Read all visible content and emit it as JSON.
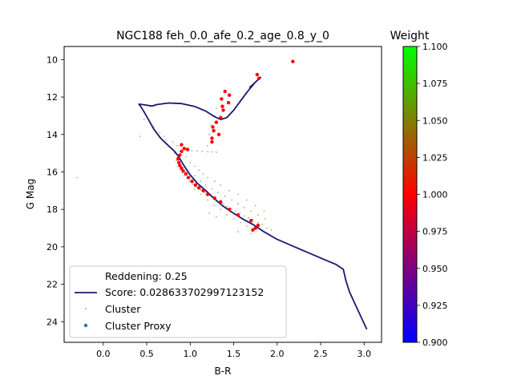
{
  "chart_data": {
    "type": "scatter",
    "title": "NGC188 feh_0.0_afe_0.2_age_0.8_y_0",
    "xlabel": "B-R",
    "ylabel": "G Mag",
    "xlim": [
      -0.45,
      3.2
    ],
    "ylim": [
      25.1,
      9.3
    ],
    "y_inverted": true,
    "x_ticks": [
      "0.0",
      "0.5",
      "1.0",
      "1.5",
      "2.0",
      "2.5",
      "3.0"
    ],
    "y_ticks": [
      "10",
      "12",
      "14",
      "16",
      "18",
      "20",
      "22",
      "24"
    ],
    "legend_position": "lower-left",
    "legend": {
      "reddening_label": "Reddening: 0.25",
      "score_label": "Score: 0.028633702997123152",
      "cluster_label": "Cluster",
      "proxy_label": "Cluster Proxy"
    },
    "colorbar": {
      "title": "Weight",
      "min": 0.9,
      "max": 1.1,
      "ticks": [
        "0.900",
        "0.925",
        "0.950",
        "0.975",
        "1.000",
        "1.025",
        "1.050",
        "1.075",
        "1.100"
      ],
      "colors": [
        "#0000ff",
        "#ff0000",
        "#00ff00"
      ]
    },
    "isochrone": {
      "color": "#191970",
      "points": [
        [
          3.03,
          24.4
        ],
        [
          2.98,
          23.9
        ],
        [
          2.93,
          23.4
        ],
        [
          2.88,
          22.9
        ],
        [
          2.83,
          22.4
        ],
        [
          2.79,
          21.8
        ],
        [
          2.76,
          21.2
        ],
        [
          2.68,
          20.95
        ],
        [
          2.55,
          20.7
        ],
        [
          2.4,
          20.4
        ],
        [
          2.2,
          20.0
        ],
        [
          2.0,
          19.6
        ],
        [
          1.85,
          19.2
        ],
        [
          1.72,
          18.8
        ],
        [
          1.6,
          18.5
        ],
        [
          1.48,
          18.15
        ],
        [
          1.37,
          17.8
        ],
        [
          1.27,
          17.4
        ],
        [
          1.18,
          17.0
        ],
        [
          1.08,
          16.6
        ],
        [
          0.99,
          16.1
        ],
        [
          0.92,
          15.6
        ],
        [
          0.87,
          15.2
        ],
        [
          0.82,
          14.9
        ],
        [
          0.75,
          14.6
        ],
        [
          0.66,
          14.2
        ],
        [
          0.58,
          13.7
        ],
        [
          0.52,
          13.2
        ],
        [
          0.47,
          12.8
        ],
        [
          0.43,
          12.5
        ],
        [
          0.41,
          12.38
        ],
        [
          0.48,
          12.42
        ],
        [
          0.56,
          12.48
        ],
        [
          0.62,
          12.4
        ],
        [
          0.75,
          12.32
        ],
        [
          0.9,
          12.35
        ],
        [
          1.05,
          12.5
        ],
        [
          1.18,
          12.75
        ],
        [
          1.28,
          13.05
        ],
        [
          1.35,
          13.2
        ],
        [
          1.42,
          13.1
        ],
        [
          1.5,
          12.7
        ],
        [
          1.58,
          12.2
        ],
        [
          1.66,
          11.7
        ],
        [
          1.74,
          11.25
        ],
        [
          1.81,
          10.95
        ],
        [
          1.75,
          11.2
        ],
        [
          1.68,
          11.5
        ]
      ]
    },
    "cluster_proxy": {
      "color": "#ff0000",
      "points": [
        [
          2.18,
          10.1
        ],
        [
          1.77,
          10.8
        ],
        [
          1.79,
          11.0
        ],
        [
          1.4,
          11.7
        ],
        [
          1.45,
          11.9
        ],
        [
          1.36,
          12.1
        ],
        [
          1.44,
          12.3
        ],
        [
          1.37,
          12.5
        ],
        [
          1.38,
          12.7
        ],
        [
          1.35,
          13.1
        ],
        [
          1.3,
          13.35
        ],
        [
          1.26,
          13.6
        ],
        [
          1.27,
          13.8
        ],
        [
          1.33,
          14.0
        ],
        [
          1.25,
          14.2
        ],
        [
          1.25,
          14.4
        ],
        [
          0.9,
          14.55
        ],
        [
          0.93,
          14.75
        ],
        [
          0.97,
          14.8
        ],
        [
          0.9,
          14.9
        ],
        [
          0.88,
          15.1
        ],
        [
          0.86,
          15.3
        ],
        [
          0.87,
          15.5
        ],
        [
          0.88,
          15.65
        ],
        [
          0.9,
          15.8
        ],
        [
          0.92,
          15.95
        ],
        [
          0.95,
          16.1
        ],
        [
          0.98,
          16.3
        ],
        [
          1.02,
          16.5
        ],
        [
          1.06,
          16.7
        ],
        [
          1.1,
          16.85
        ],
        [
          1.15,
          17.0
        ],
        [
          1.2,
          17.2
        ],
        [
          1.28,
          17.4
        ],
        [
          1.35,
          17.6
        ],
        [
          1.45,
          18.0
        ],
        [
          1.55,
          18.3
        ],
        [
          1.7,
          18.6
        ],
        [
          1.78,
          18.85
        ],
        [
          1.75,
          19.0
        ],
        [
          1.72,
          19.1
        ]
      ]
    },
    "cluster": {
      "color": "#8a9a4e",
      "points": [
        [
          -0.3,
          16.3
        ],
        [
          0.42,
          14.1
        ],
        [
          0.47,
          13.2
        ],
        [
          0.58,
          13.6
        ],
        [
          0.65,
          13.9
        ],
        [
          0.7,
          14.1
        ],
        [
          0.72,
          14.3
        ],
        [
          0.8,
          14.4
        ],
        [
          0.85,
          14.6
        ],
        [
          0.95,
          14.8
        ],
        [
          1.02,
          14.85
        ],
        [
          1.08,
          14.88
        ],
        [
          1.14,
          14.9
        ],
        [
          1.2,
          14.92
        ],
        [
          1.25,
          14.93
        ],
        [
          1.3,
          14.95
        ],
        [
          1.2,
          14.6
        ],
        [
          1.22,
          14.0
        ],
        [
          1.24,
          13.5
        ],
        [
          1.28,
          13.0
        ],
        [
          1.3,
          12.6
        ],
        [
          0.82,
          15.0
        ],
        [
          0.84,
          15.4
        ],
        [
          0.86,
          15.7
        ],
        [
          0.89,
          15.9
        ],
        [
          0.91,
          16.05
        ],
        [
          0.93,
          16.2
        ],
        [
          0.96,
          16.35
        ],
        [
          0.99,
          16.5
        ],
        [
          1.03,
          16.65
        ],
        [
          1.07,
          16.8
        ],
        [
          1.12,
          16.95
        ],
        [
          1.17,
          17.1
        ],
        [
          1.22,
          17.25
        ],
        [
          1.26,
          17.35
        ],
        [
          1.3,
          17.5
        ],
        [
          1.34,
          17.55
        ],
        [
          1.38,
          17.7
        ],
        [
          1.42,
          17.85
        ],
        [
          1.47,
          17.95
        ],
        [
          1.52,
          18.1
        ],
        [
          1.57,
          18.2
        ],
        [
          1.62,
          18.35
        ],
        [
          1.67,
          18.45
        ],
        [
          1.72,
          18.55
        ],
        [
          1.78,
          18.7
        ],
        [
          1.83,
          18.8
        ],
        [
          1.88,
          19.0
        ],
        [
          1.93,
          19.1
        ],
        [
          0.98,
          16.0
        ],
        [
          1.05,
          16.2
        ],
        [
          1.12,
          16.5
        ],
        [
          1.18,
          16.7
        ],
        [
          1.25,
          16.9
        ],
        [
          1.32,
          17.1
        ],
        [
          1.4,
          17.3
        ],
        [
          1.48,
          17.5
        ],
        [
          1.55,
          17.7
        ],
        [
          1.62,
          17.9
        ],
        [
          1.7,
          18.1
        ],
        [
          1.78,
          18.3
        ],
        [
          1.86,
          18.5
        ],
        [
          1.05,
          16.9
        ],
        [
          1.12,
          17.2
        ],
        [
          1.2,
          17.5
        ],
        [
          1.28,
          17.8
        ],
        [
          1.35,
          18.0
        ],
        [
          1.42,
          18.3
        ],
        [
          1.5,
          18.5
        ],
        [
          1.58,
          18.7
        ],
        [
          1.65,
          18.9
        ],
        [
          1.22,
          18.2
        ],
        [
          1.3,
          18.4
        ],
        [
          1.55,
          19.2
        ],
        [
          1.7,
          19.3
        ],
        [
          0.95,
          15.2
        ],
        [
          1.0,
          15.5
        ],
        [
          1.05,
          15.7
        ],
        [
          1.1,
          15.9
        ],
        [
          1.15,
          16.1
        ],
        [
          1.2,
          16.3
        ],
        [
          1.28,
          16.5
        ],
        [
          1.35,
          16.7
        ],
        [
          1.45,
          17.0
        ],
        [
          1.55,
          17.2
        ],
        [
          1.65,
          17.5
        ],
        [
          1.75,
          17.8
        ],
        [
          1.85,
          18.1
        ]
      ]
    }
  }
}
